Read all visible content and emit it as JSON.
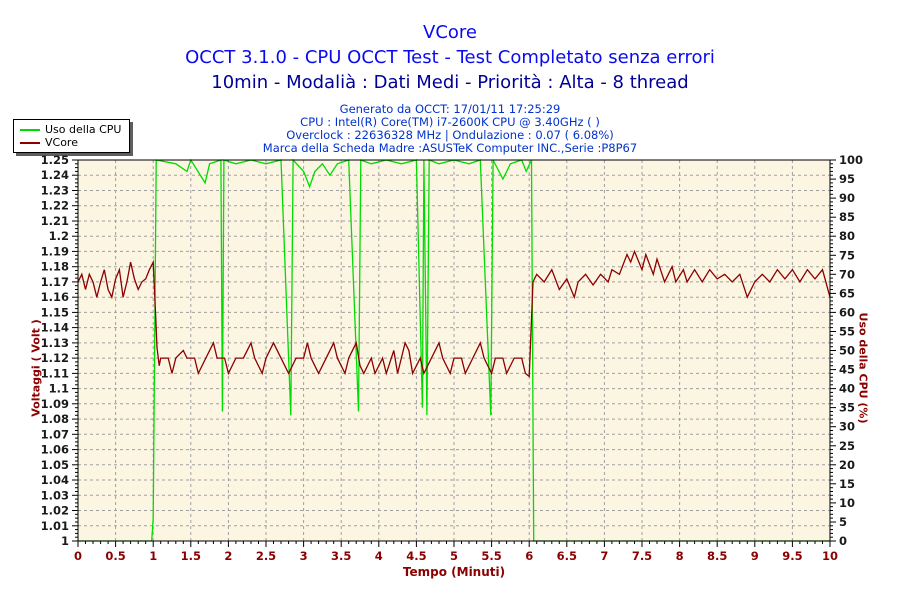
{
  "header": {
    "title": "VCore",
    "subtitle1": "OCCT 3.1.0 - CPU OCCT Test - Test Completato senza errori",
    "subtitle2": "10min - Modalià : Dati Medi - Priorità : Alta - 8 thread",
    "info_lines": [
      "Generato da OCCT: 17/01/11 17:25:29",
      "CPU : Intel(R) Core(TM) i7-2600K CPU @ 3.40GHz ( )",
      "Overclock : 22636328 MHz | Ondulazione : 0.07 ( 6.08%)",
      "Marca della Scheda Madre :ASUSTeK Computer INC.,Serie :P8P67"
    ]
  },
  "legend": {
    "items": [
      {
        "label": "Uso della CPU",
        "color": "#00dc00"
      },
      {
        "label": "VCore",
        "color": "#8b0000"
      }
    ]
  },
  "colors": {
    "title_blue": "#0a0af0",
    "subtitle2_blue": "#000099",
    "info_blue": "#0033cc",
    "plot_bg": "#fcf5e2",
    "grid": "#a0a0a0",
    "axis_line": "#000000",
    "y_tick_label": "#1a1a1a",
    "x_tick_label": "#8b0000",
    "axis_title_red": "#8b0000",
    "cpu_green": "#00dc00",
    "vcore_maroon": "#8b0000"
  },
  "chart_data": {
    "type": "line",
    "title": "VCore",
    "xlabel": "Tempo (Minuti)",
    "ylabel_left": "Voltaggi ( Volt )",
    "ylabel_right": "Uso della CPU (%)",
    "grid": "dashed",
    "legend_position": "top-left",
    "x_axis": {
      "min": 0,
      "max": 10,
      "major": 0.5,
      "minor": 0.1
    },
    "y_left": {
      "min": 1.0,
      "max": 1.25,
      "major": 0.01,
      "minor": 0.0025
    },
    "y_right": {
      "min": 0,
      "max": 100,
      "major": 5,
      "minor": 1
    },
    "series": [
      {
        "name": "Uso della CPU",
        "axis": "right",
        "color": "#00dc00",
        "points": [
          [
            0,
            0
          ],
          [
            0.98,
            0
          ],
          [
            1.0,
            6
          ],
          [
            1.04,
            100
          ],
          [
            1.3,
            99
          ],
          [
            1.45,
            97
          ],
          [
            1.5,
            100
          ],
          [
            1.69,
            94
          ],
          [
            1.75,
            99
          ],
          [
            1.9,
            100
          ],
          [
            1.92,
            34
          ],
          [
            1.94,
            100
          ],
          [
            2.1,
            99
          ],
          [
            2.3,
            100
          ],
          [
            2.5,
            99
          ],
          [
            2.7,
            100
          ],
          [
            2.83,
            33
          ],
          [
            2.86,
            100
          ],
          [
            3.0,
            97
          ],
          [
            3.08,
            93
          ],
          [
            3.15,
            97
          ],
          [
            3.25,
            99
          ],
          [
            3.35,
            96
          ],
          [
            3.45,
            99
          ],
          [
            3.6,
            100
          ],
          [
            3.73,
            34
          ],
          [
            3.76,
            100
          ],
          [
            3.9,
            99
          ],
          [
            4.1,
            100
          ],
          [
            4.3,
            99
          ],
          [
            4.5,
            100
          ],
          [
            4.58,
            35
          ],
          [
            4.6,
            100
          ],
          [
            4.64,
            33
          ],
          [
            4.67,
            100
          ],
          [
            4.8,
            99
          ],
          [
            5.0,
            100
          ],
          [
            5.2,
            99
          ],
          [
            5.35,
            100
          ],
          [
            5.49,
            33
          ],
          [
            5.52,
            100
          ],
          [
            5.65,
            95
          ],
          [
            5.75,
            99
          ],
          [
            5.9,
            100
          ],
          [
            5.96,
            97
          ],
          [
            6.03,
            100
          ],
          [
            6.06,
            0
          ],
          [
            10,
            0
          ]
        ]
      },
      {
        "name": "VCore",
        "axis": "left",
        "color": "#8b0000",
        "points": [
          [
            0,
            1.17
          ],
          [
            0.05,
            1.175
          ],
          [
            0.1,
            1.165
          ],
          [
            0.15,
            1.175
          ],
          [
            0.2,
            1.17
          ],
          [
            0.25,
            1.16
          ],
          [
            0.3,
            1.17
          ],
          [
            0.35,
            1.178
          ],
          [
            0.4,
            1.165
          ],
          [
            0.45,
            1.16
          ],
          [
            0.5,
            1.172
          ],
          [
            0.55,
            1.178
          ],
          [
            0.6,
            1.16
          ],
          [
            0.65,
            1.17
          ],
          [
            0.7,
            1.183
          ],
          [
            0.75,
            1.172
          ],
          [
            0.8,
            1.165
          ],
          [
            0.85,
            1.17
          ],
          [
            0.9,
            1.172
          ],
          [
            0.95,
            1.178
          ],
          [
            1.0,
            1.183
          ],
          [
            1.03,
            1.15
          ],
          [
            1.05,
            1.127
          ],
          [
            1.08,
            1.115
          ],
          [
            1.1,
            1.12
          ],
          [
            1.2,
            1.12
          ],
          [
            1.25,
            1.11
          ],
          [
            1.3,
            1.12
          ],
          [
            1.4,
            1.125
          ],
          [
            1.45,
            1.12
          ],
          [
            1.55,
            1.12
          ],
          [
            1.6,
            1.11
          ],
          [
            1.7,
            1.12
          ],
          [
            1.8,
            1.13
          ],
          [
            1.85,
            1.12
          ],
          [
            1.95,
            1.12
          ],
          [
            2.0,
            1.11
          ],
          [
            2.1,
            1.12
          ],
          [
            2.2,
            1.12
          ],
          [
            2.3,
            1.13
          ],
          [
            2.35,
            1.12
          ],
          [
            2.45,
            1.11
          ],
          [
            2.5,
            1.12
          ],
          [
            2.6,
            1.13
          ],
          [
            2.7,
            1.12
          ],
          [
            2.8,
            1.11
          ],
          [
            2.9,
            1.12
          ],
          [
            3.0,
            1.12
          ],
          [
            3.05,
            1.13
          ],
          [
            3.1,
            1.12
          ],
          [
            3.2,
            1.11
          ],
          [
            3.3,
            1.12
          ],
          [
            3.4,
            1.13
          ],
          [
            3.45,
            1.12
          ],
          [
            3.55,
            1.11
          ],
          [
            3.6,
            1.12
          ],
          [
            3.7,
            1.13
          ],
          [
            3.75,
            1.115
          ],
          [
            3.8,
            1.11
          ],
          [
            3.9,
            1.12
          ],
          [
            3.95,
            1.11
          ],
          [
            4.05,
            1.12
          ],
          [
            4.1,
            1.11
          ],
          [
            4.2,
            1.125
          ],
          [
            4.25,
            1.11
          ],
          [
            4.35,
            1.13
          ],
          [
            4.4,
            1.125
          ],
          [
            4.45,
            1.11
          ],
          [
            4.55,
            1.12
          ],
          [
            4.6,
            1.11
          ],
          [
            4.7,
            1.12
          ],
          [
            4.8,
            1.13
          ],
          [
            4.85,
            1.12
          ],
          [
            4.95,
            1.11
          ],
          [
            5.0,
            1.12
          ],
          [
            5.1,
            1.12
          ],
          [
            5.15,
            1.11
          ],
          [
            5.25,
            1.12
          ],
          [
            5.35,
            1.13
          ],
          [
            5.4,
            1.12
          ],
          [
            5.5,
            1.11
          ],
          [
            5.55,
            1.12
          ],
          [
            5.65,
            1.12
          ],
          [
            5.7,
            1.11
          ],
          [
            5.8,
            1.12
          ],
          [
            5.9,
            1.12
          ],
          [
            5.95,
            1.11
          ],
          [
            6.0,
            1.108
          ],
          [
            6.05,
            1.17
          ],
          [
            6.1,
            1.175
          ],
          [
            6.2,
            1.17
          ],
          [
            6.3,
            1.178
          ],
          [
            6.4,
            1.165
          ],
          [
            6.5,
            1.172
          ],
          [
            6.6,
            1.16
          ],
          [
            6.65,
            1.17
          ],
          [
            6.75,
            1.175
          ],
          [
            6.85,
            1.168
          ],
          [
            6.95,
            1.175
          ],
          [
            7.05,
            1.17
          ],
          [
            7.1,
            1.178
          ],
          [
            7.2,
            1.175
          ],
          [
            7.3,
            1.188
          ],
          [
            7.35,
            1.183
          ],
          [
            7.4,
            1.19
          ],
          [
            7.5,
            1.178
          ],
          [
            7.55,
            1.188
          ],
          [
            7.65,
            1.175
          ],
          [
            7.7,
            1.185
          ],
          [
            7.8,
            1.17
          ],
          [
            7.9,
            1.18
          ],
          [
            7.95,
            1.17
          ],
          [
            8.05,
            1.178
          ],
          [
            8.1,
            1.17
          ],
          [
            8.2,
            1.178
          ],
          [
            8.3,
            1.17
          ],
          [
            8.4,
            1.178
          ],
          [
            8.5,
            1.172
          ],
          [
            8.6,
            1.175
          ],
          [
            8.7,
            1.17
          ],
          [
            8.8,
            1.175
          ],
          [
            8.9,
            1.16
          ],
          [
            9.0,
            1.17
          ],
          [
            9.1,
            1.175
          ],
          [
            9.2,
            1.17
          ],
          [
            9.3,
            1.178
          ],
          [
            9.4,
            1.172
          ],
          [
            9.5,
            1.178
          ],
          [
            9.6,
            1.17
          ],
          [
            9.7,
            1.178
          ],
          [
            9.8,
            1.172
          ],
          [
            9.9,
            1.178
          ],
          [
            10.0,
            1.16
          ]
        ]
      }
    ]
  }
}
